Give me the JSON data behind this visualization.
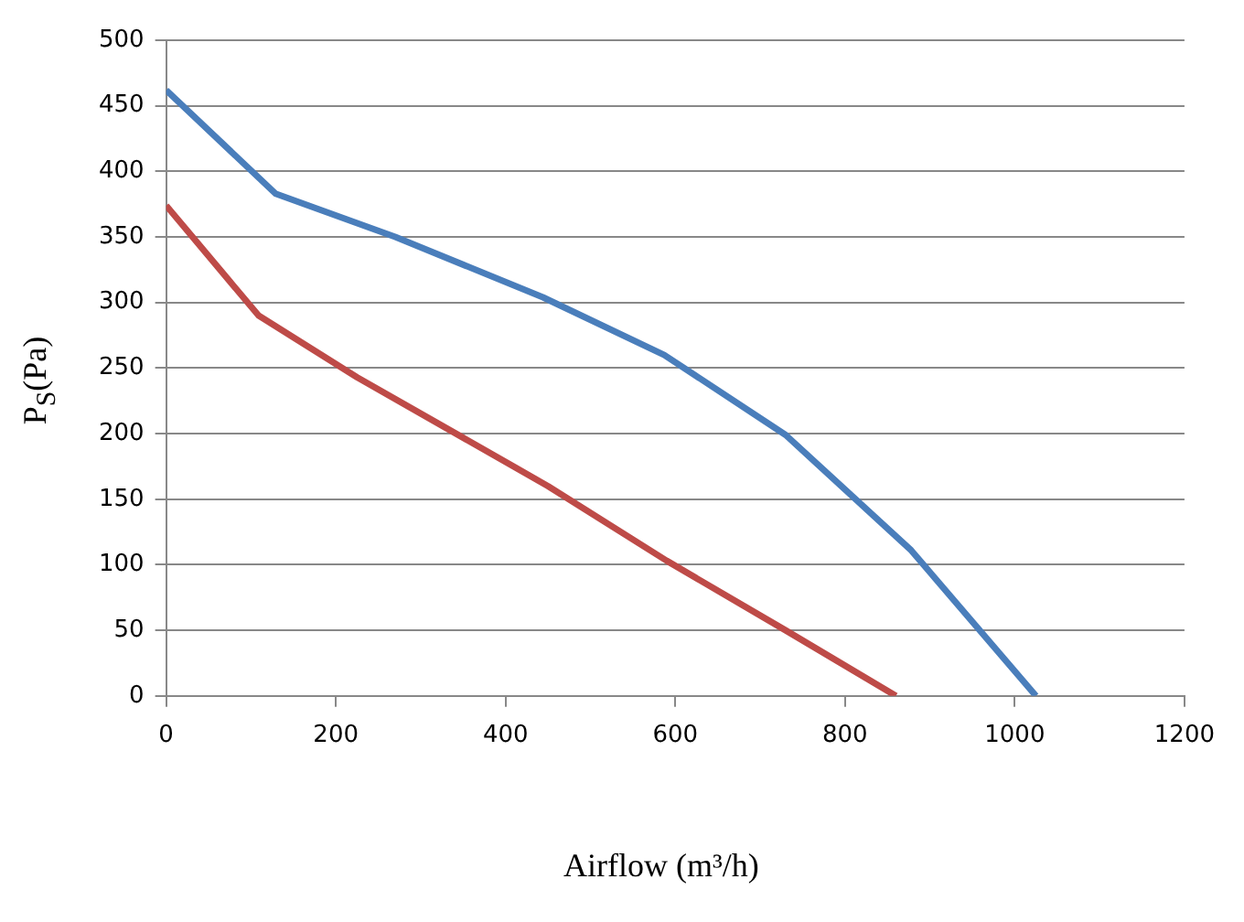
{
  "chart_data": {
    "type": "line",
    "xlabel": "Airflow  (m³/h)",
    "ylabel": "P$_{S}$(Pa)",
    "xlim": [
      0,
      1200
    ],
    "xticks": [
      0,
      200,
      400,
      600,
      800,
      1000,
      1200
    ],
    "ylim": [
      0,
      500
    ],
    "yticks": [
      0,
      50,
      100,
      150,
      200,
      250,
      300,
      350,
      400,
      450,
      500
    ],
    "grid": "y",
    "marker": "none",
    "line_style": "solid",
    "series": [
      {
        "color": "#4a7ebb",
        "x": [
          0,
          129,
          270,
          444,
          587,
          730,
          878,
          1025
        ],
        "values": [
          462,
          383,
          350,
          304,
          260,
          199,
          111,
          0
        ]
      },
      {
        "color": "#be4b48",
        "x": [
          0,
          109,
          225,
          450,
          590,
          730,
          860
        ],
        "values": [
          374,
          290,
          243,
          160,
          103,
          50,
          0
        ]
      }
    ]
  }
}
